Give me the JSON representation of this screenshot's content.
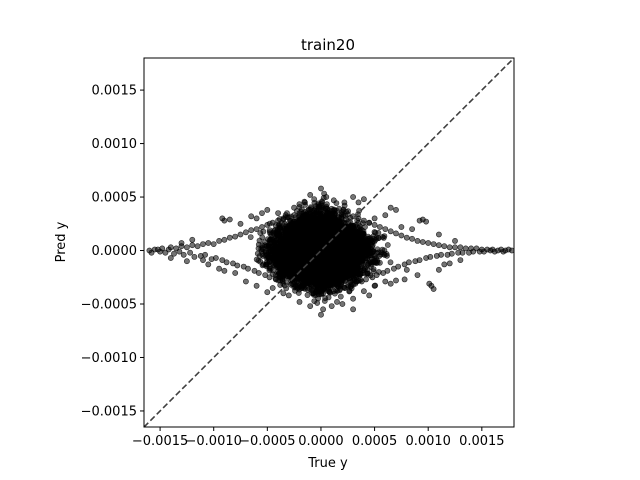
{
  "chart_data": {
    "type": "scatter",
    "title": "train20",
    "xlabel": "True y",
    "ylabel": "Pred y",
    "xlim": [
      -0.00165,
      0.0018
    ],
    "ylim": [
      -0.00165,
      0.0018
    ],
    "x_ticks": [
      -0.0015,
      -0.001,
      -0.0005,
      0.0,
      0.0005,
      0.001,
      0.0015
    ],
    "x_tick_labels": [
      "−0.0015",
      "−0.0010",
      "−0.0005",
      "0.0000",
      "0.0005",
      "0.0010",
      "0.0015"
    ],
    "y_ticks": [
      -0.0015,
      -0.001,
      -0.0005,
      0.0,
      0.0005,
      0.001,
      0.0015
    ],
    "y_tick_labels": [
      "−0.0015",
      "−0.0010",
      "−0.0005",
      "0.0000",
      "0.0005",
      "0.0010",
      "0.0015"
    ],
    "reference_line": {
      "style": "dashed",
      "x": [
        -0.00165,
        0.0018
      ],
      "y": [
        -0.00165,
        0.0018
      ],
      "color": "#404040"
    },
    "marker_color": "#000000",
    "marker_opacity": 0.55,
    "grid": false,
    "series": [
      {
        "points": [
          [
            -0.0016,
            0.0
          ],
          [
            -0.00158,
            -2e-05
          ],
          [
            -0.00155,
            1e-05
          ],
          [
            -0.00152,
            1e-05
          ],
          [
            -0.0015,
            -1e-05
          ],
          [
            -0.00148,
            2e-05
          ],
          [
            -0.00145,
            -2e-05
          ],
          [
            -0.00142,
            1e-05
          ],
          [
            -0.0014,
            3e-05
          ],
          [
            -0.00137,
            -3e-05
          ],
          [
            -0.00135,
            2e-05
          ],
          [
            -0.00132,
            -1e-05
          ],
          [
            -0.0013,
            4e-05
          ],
          [
            -0.00128,
            -4e-05
          ],
          [
            -0.00125,
            3e-05
          ],
          [
            -0.00122,
            -2e-05
          ],
          [
            -0.0012,
            5e-05
          ],
          [
            -0.00118,
            -6e-05
          ],
          [
            -0.00115,
            4e-05
          ],
          [
            -0.00112,
            -5e-05
          ],
          [
            -0.0011,
            6e-05
          ],
          [
            -0.00108,
            -4e-05
          ],
          [
            -0.00105,
            7e-05
          ],
          [
            -0.00102,
            -8e-05
          ],
          [
            -0.001,
            6e-05
          ],
          [
            -0.00098,
            -7e-05
          ],
          [
            -0.00095,
            9e-05
          ],
          [
            -0.00092,
            -9e-05
          ],
          [
            -0.0009,
            0.0001
          ],
          [
            -0.00088,
            -0.00011
          ],
          [
            -0.00085,
            0.00012
          ],
          [
            -0.00082,
            -0.00012
          ],
          [
            -0.0008,
            0.00013
          ],
          [
            -0.00078,
            -0.00014
          ],
          [
            -0.00075,
            0.00015
          ],
          [
            -0.00072,
            -0.00015
          ],
          [
            -0.0007,
            0.00017
          ],
          [
            -0.00068,
            -0.00017
          ],
          [
            -0.00065,
            0.00019
          ],
          [
            -0.00062,
            -0.00019
          ],
          [
            -0.0006,
            0.0002
          ],
          [
            -0.00058,
            -0.00021
          ],
          [
            -0.00055,
            0.00022
          ],
          [
            -0.00052,
            -0.00023
          ],
          [
            -0.0005,
            0.00024
          ],
          [
            -0.00048,
            -0.00025
          ],
          [
            -0.00045,
            0.00026
          ],
          [
            -0.00042,
            -0.00027
          ],
          [
            -0.0004,
            0.00028
          ],
          [
            -0.00038,
            -0.00028
          ],
          [
            -0.00035,
            0.0003
          ],
          [
            -0.00032,
            -0.0003
          ],
          [
            -0.0003,
            0.00031
          ],
          [
            -0.00028,
            -0.00032
          ],
          [
            -0.00025,
            0.00033
          ],
          [
            -0.00022,
            -0.00034
          ],
          [
            -0.0002,
            0.00035
          ],
          [
            -0.00018,
            -0.00035
          ],
          [
            -0.00015,
            0.00036
          ],
          [
            -0.00012,
            -0.00037
          ],
          [
            -0.0001,
            0.00038
          ],
          [
            -8e-05,
            -0.0004
          ],
          [
            -5e-05,
            0.00039
          ],
          [
            -2e-05,
            -0.00041
          ],
          [
            0.0,
            0.0004
          ],
          [
            2e-05,
            -0.0004
          ],
          [
            5e-05,
            0.00041
          ],
          [
            8e-05,
            -0.00039
          ],
          [
            0.0001,
            0.00039
          ],
          [
            0.00012,
            -0.00038
          ],
          [
            0.00015,
            0.00037
          ],
          [
            0.00018,
            -0.00036
          ],
          [
            0.0002,
            0.00036
          ],
          [
            0.00022,
            -0.00035
          ],
          [
            0.00025,
            0.00034
          ],
          [
            0.00028,
            -0.00033
          ],
          [
            0.0003,
            0.00032
          ],
          [
            0.00032,
            -0.00031
          ],
          [
            0.00035,
            0.0003
          ],
          [
            0.00038,
            -0.00029
          ],
          [
            0.0004,
            0.00028
          ],
          [
            0.00042,
            -0.00027
          ],
          [
            0.00045,
            0.00026
          ],
          [
            0.00048,
            -0.00025
          ],
          [
            0.0005,
            0.00024
          ],
          [
            0.00052,
            -0.00023
          ],
          [
            0.00055,
            0.00022
          ],
          [
            0.00058,
            -0.00021
          ],
          [
            0.0006,
            0.0002
          ],
          [
            0.00062,
            -0.00019
          ],
          [
            0.00065,
            0.00018
          ],
          [
            0.00068,
            -0.00017
          ],
          [
            0.0007,
            0.00016
          ],
          [
            0.00072,
            -0.00015
          ],
          [
            0.00075,
            0.00014
          ],
          [
            0.00078,
            -0.00013
          ],
          [
            0.0008,
            0.00012
          ],
          [
            0.00082,
            -0.00011
          ],
          [
            0.00085,
            0.00011
          ],
          [
            0.00088,
            -0.0001
          ],
          [
            0.0009,
            9e-05
          ],
          [
            0.00092,
            -9e-05
          ],
          [
            0.00095,
            8e-05
          ],
          [
            0.00098,
            -7e-05
          ],
          [
            0.001,
            7e-05
          ],
          [
            0.00102,
            -6e-05
          ],
          [
            0.00105,
            6e-05
          ],
          [
            0.00108,
            -5e-05
          ],
          [
            0.0011,
            5e-05
          ],
          [
            0.00112,
            -4e-05
          ],
          [
            0.00115,
            4e-05
          ],
          [
            0.00118,
            -4e-05
          ],
          [
            0.0012,
            3e-05
          ],
          [
            0.00122,
            -3e-05
          ],
          [
            0.00125,
            3e-05
          ],
          [
            0.00128,
            -2e-05
          ],
          [
            0.0013,
            3e-05
          ],
          [
            0.00132,
            -2e-05
          ],
          [
            0.00135,
            2e-05
          ],
          [
            0.00138,
            -2e-05
          ],
          [
            0.0014,
            2e-05
          ],
          [
            0.00142,
            -1e-05
          ],
          [
            0.00145,
            2e-05
          ],
          [
            0.00148,
            -1e-05
          ],
          [
            0.0015,
            1e-05
          ],
          [
            0.00152,
            -1e-05
          ],
          [
            0.00155,
            1e-05
          ],
          [
            0.00158,
            0.0
          ],
          [
            0.0016,
            1e-05
          ],
          [
            0.00162,
            -1e-05
          ],
          [
            0.00165,
            0.0
          ],
          [
            0.00168,
            1e-05
          ],
          [
            0.0017,
            -1e-05
          ],
          [
            0.00172,
            0.0
          ],
          [
            0.00175,
            1e-05
          ],
          [
            0.00178,
            0.0
          ],
          [
            0.0,
            0.00058
          ],
          [
            -0.0001,
            0.00052
          ],
          [
            0.0003,
            0.0005
          ],
          [
            0.00035,
            0.00045
          ],
          [
            0.0004,
            0.00048
          ],
          [
            0.0006,
            0.00033
          ],
          [
            0.0007,
            0.00038
          ],
          [
            0.00065,
            0.0004
          ],
          [
            -0.0006,
            0.0003
          ],
          [
            -0.00065,
            0.00032
          ],
          [
            -0.00055,
            0.00035
          ],
          [
            -0.0009,
            0.00028
          ],
          [
            -0.00092,
            0.0003
          ],
          [
            -0.00085,
            0.00029
          ],
          [
            -0.0005,
            0.00038
          ],
          [
            0.00095,
            0.00029
          ],
          [
            0.00098,
            0.00027
          ],
          [
            0.00092,
            0.00028
          ],
          [
            -0.0011,
            -9e-05
          ],
          [
            -0.00105,
            -0.00013
          ],
          [
            -0.00095,
            -0.00017
          ],
          [
            -0.0009,
            -0.00019
          ],
          [
            -0.0007,
            -0.00029
          ],
          [
            -0.0006,
            -0.00033
          ],
          [
            -0.0005,
            -0.00039
          ],
          [
            -0.0003,
            -0.00042
          ],
          [
            -0.0002,
            -0.00048
          ],
          [
            -0.0001,
            -0.00052
          ],
          [
            0.0,
            -0.0006
          ],
          [
            2e-05,
            -0.00055
          ],
          [
            0.0001,
            -0.00052
          ],
          [
            0.00015,
            -0.00048
          ],
          [
            0.0002,
            -0.0005
          ],
          [
            0.0003,
            -0.00045
          ],
          [
            0.0004,
            -0.00038
          ],
          [
            0.0005,
            -0.00033
          ],
          [
            0.0006,
            -0.00029
          ],
          [
            0.00065,
            -0.00031
          ],
          [
            0.0007,
            -0.00028
          ],
          [
            0.00078,
            -0.00027
          ],
          [
            0.0009,
            -0.00023
          ],
          [
            0.00101,
            -0.00031
          ],
          [
            0.00103,
            -0.00033
          ],
          [
            0.00105,
            -0.00036
          ],
          [
            0.0011,
            -0.00018
          ],
          [
            0.00115,
            -0.00013
          ],
          [
            0.0012,
            -0.00012
          ],
          [
            0.0013,
            -9e-05
          ],
          [
            0.0011,
            0.00015
          ],
          [
            0.00125,
            9e-05
          ],
          [
            -0.0012,
            0.0001
          ],
          [
            -0.0013,
            7e-05
          ],
          [
            -0.00125,
            -0.0001
          ],
          [
            -0.0014,
            -7e-05
          ],
          [
            -0.00015,
            0.00045
          ],
          [
            5e-05,
            0.0005
          ],
          [
            0.00012,
            0.00047
          ],
          [
            -0.00025,
            0.0004
          ],
          [
            0.00022,
            0.00042
          ],
          [
            0.0003,
            -0.00055
          ],
          [
            -0.00035,
            -0.0004
          ],
          [
            -0.00045,
            -0.00035
          ],
          [
            0.00045,
            -0.00042
          ],
          [
            0.0008,
            -0.00018
          ],
          [
            0.00085,
            0.0002
          ],
          [
            -0.0008,
            -0.00021
          ],
          [
            -0.00075,
            0.00025
          ],
          [
            0.00075,
            0.00022
          ],
          [
            -0.0004,
            0.00035
          ],
          [
            0.0005,
            0.0003
          ]
        ]
      }
    ]
  }
}
